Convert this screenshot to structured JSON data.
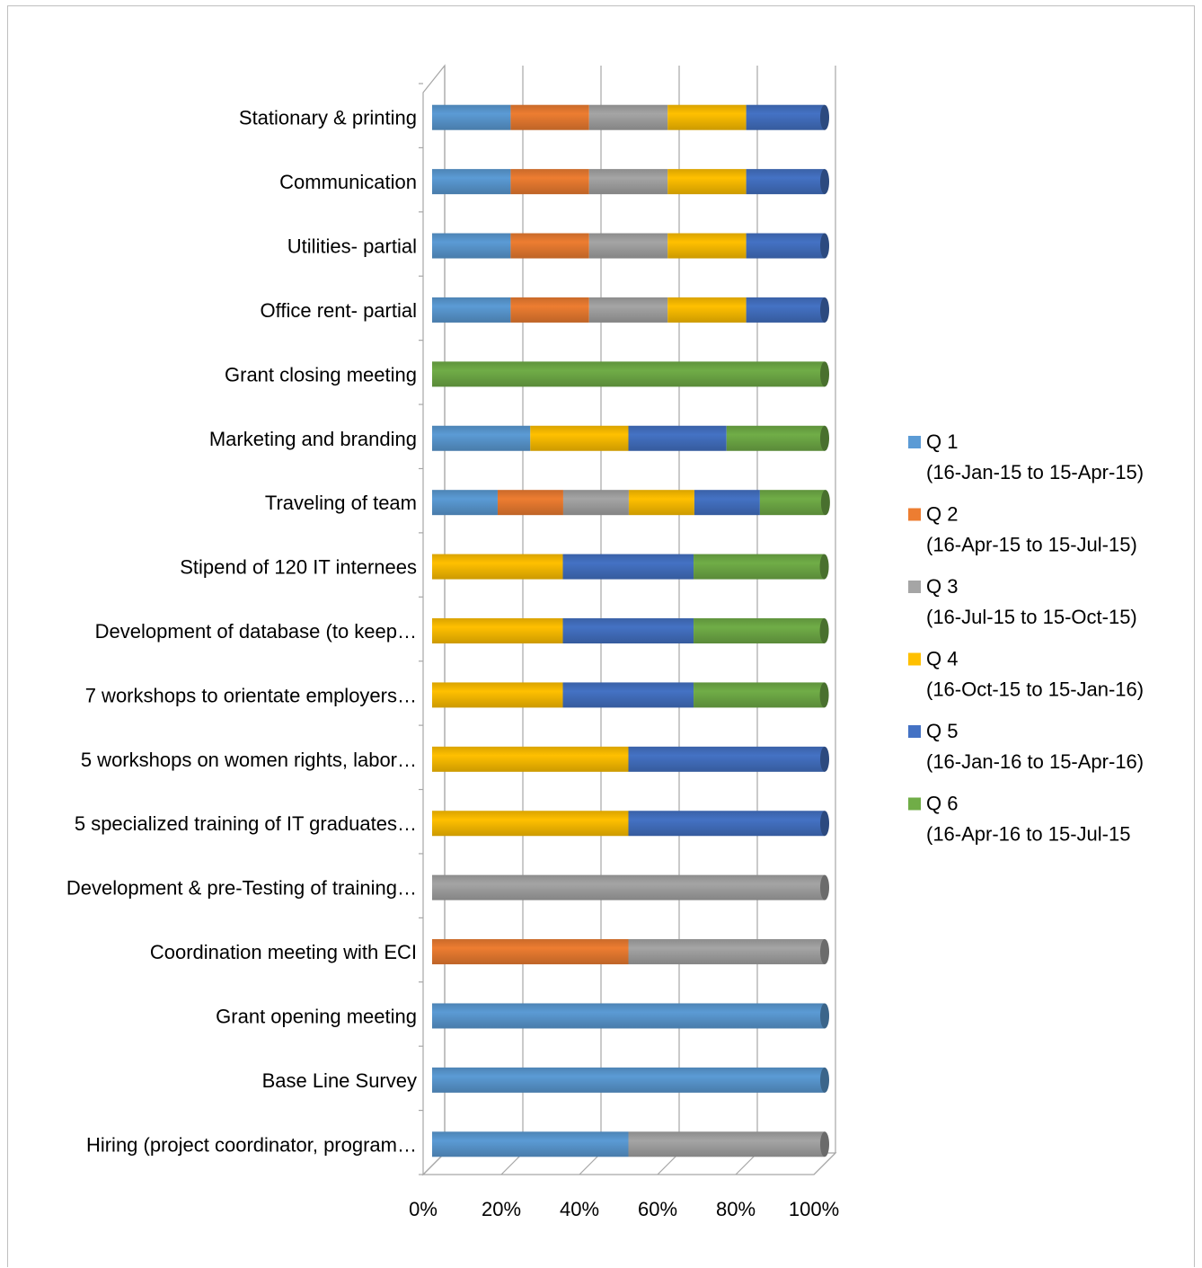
{
  "chart_data": {
    "type": "bar",
    "orientation": "horizontal",
    "stacking": "percent",
    "style": "3d-cylinder",
    "title": "",
    "categories": [
      "Stationary & printing",
      "Communication",
      "Utilities- partial",
      "Office rent- partial",
      "Grant closing meeting",
      "Marketing and branding",
      "Traveling of team",
      "Stipend of 120 IT internees",
      "Development of database (to keep…",
      "7 workshops to orientate employers…",
      "5 workshops on women rights, labor…",
      "5 specialized training of IT graduates…",
      "Development & pre-Testing of training…",
      "Coordination meeting with ECI",
      "Grant opening meeting",
      "Base Line Survey",
      "Hiring (project coordinator, program…"
    ],
    "series": [
      {
        "name": "Q 1\n(16-Jan-15 to 15-Apr-15)",
        "line1": "Q 1",
        "line2": "(16-Jan-15 to 15-Apr-15)",
        "color": "#5b9bd5",
        "values": [
          20,
          20,
          20,
          20,
          0,
          25,
          16.7,
          0,
          0,
          0,
          0,
          0,
          0,
          0,
          100,
          100,
          50
        ]
      },
      {
        "name": "Q 2\n(16-Apr-15 to 15-Jul-15)",
        "line1": "Q 2",
        "line2": "(16-Apr-15 to 15-Jul-15)",
        "color": "#ed7d31",
        "values": [
          20,
          20,
          20,
          20,
          0,
          0,
          16.7,
          0,
          0,
          0,
          0,
          0,
          0,
          50,
          0,
          0,
          0
        ]
      },
      {
        "name": "Q 3\n(16-Jul-15 to 15-Oct-15)",
        "line1": "Q 3",
        "line2": "(16-Jul-15 to 15-Oct-15)",
        "color": "#a5a5a5",
        "values": [
          20,
          20,
          20,
          20,
          0,
          0,
          16.7,
          0,
          0,
          0,
          0,
          0,
          100,
          50,
          0,
          0,
          50
        ]
      },
      {
        "name": "Q 4\n(16-Oct-15 to 15-Jan-16)",
        "line1": "Q 4",
        "line2": "(16-Oct-15 to 15-Jan-16)",
        "color": "#ffc000",
        "values": [
          20,
          20,
          20,
          20,
          0,
          25,
          16.7,
          33.3,
          33.3,
          33.3,
          50,
          50,
          0,
          0,
          0,
          0,
          0
        ]
      },
      {
        "name": "Q 5\n(16-Jan-16 to 15-Apr-16)",
        "line1": "Q 5",
        "line2": "(16-Jan-16 to 15-Apr-16)",
        "color": "#4472c4",
        "values": [
          20,
          20,
          20,
          20,
          0,
          25,
          16.7,
          33.3,
          33.3,
          33.3,
          50,
          50,
          0,
          0,
          0,
          0,
          0
        ]
      },
      {
        "name": "Q 6\n(16-Apr-16 to 15-Jul-15",
        "line1": "Q 6",
        "line2": "(16-Apr-16 to 15-Jul-15",
        "color": "#70ad47",
        "values": [
          0,
          0,
          0,
          0,
          100,
          25,
          16.7,
          33.3,
          33.3,
          33.3,
          0,
          0,
          0,
          0,
          0,
          0,
          0
        ]
      }
    ],
    "x_ticks": [
      "0%",
      "20%",
      "40%",
      "60%",
      "80%",
      "100%"
    ],
    "xlim": [
      0,
      100
    ],
    "grid": "vertical",
    "legend_position": "right"
  }
}
